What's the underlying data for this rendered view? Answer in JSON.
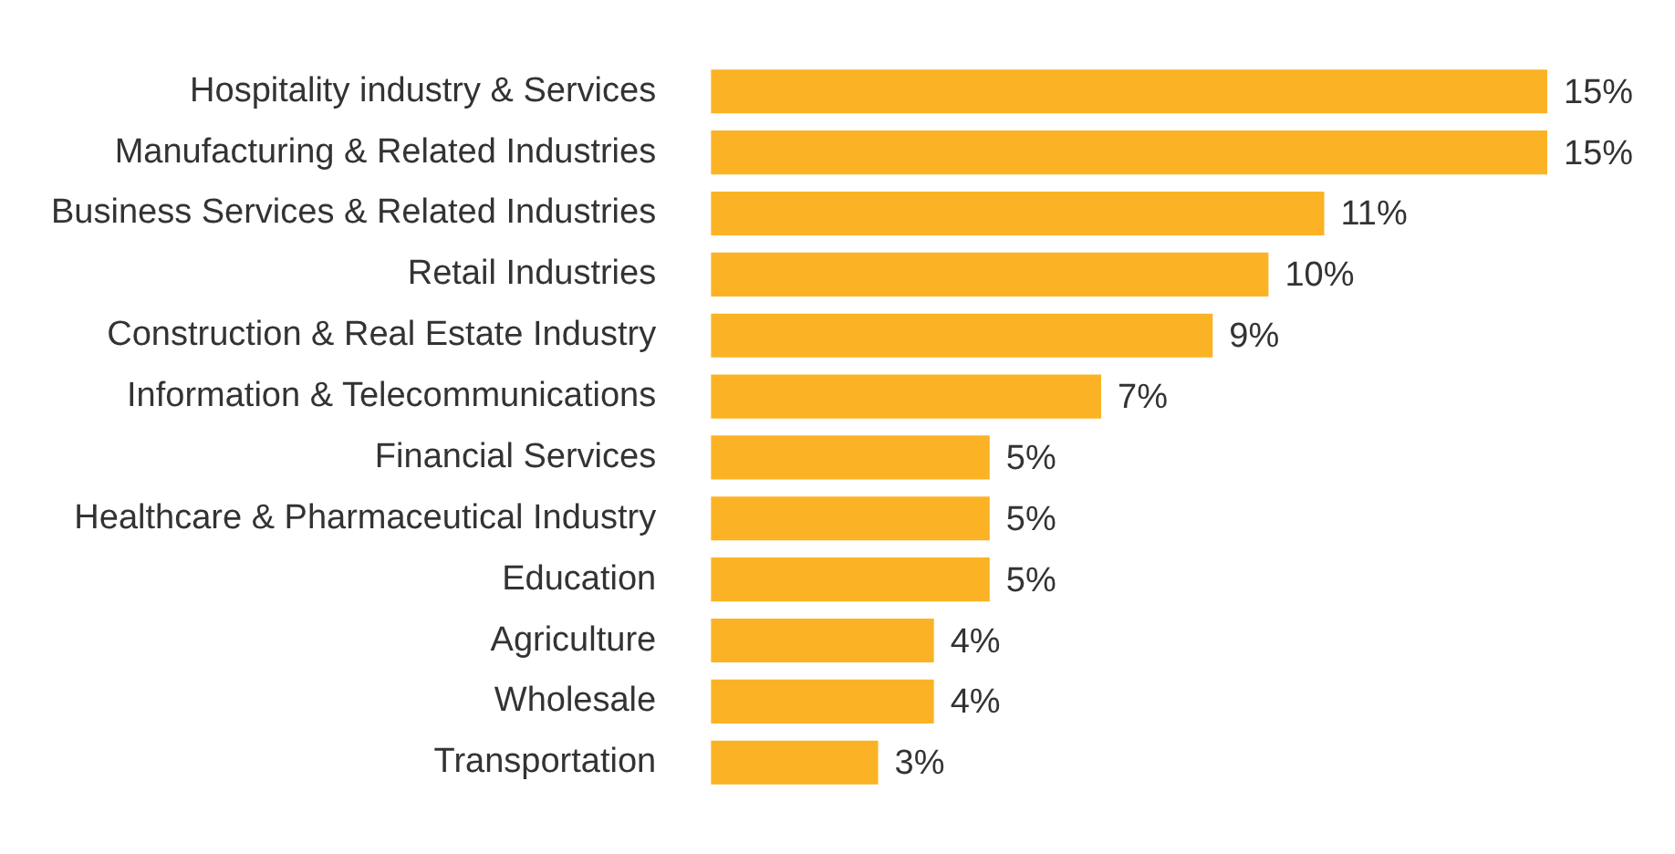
{
  "chart_data": {
    "type": "bar",
    "orientation": "horizontal",
    "color": "#fbb325",
    "categories": [
      "Hospitality industry & Services",
      "Manufacturing & Related Industries",
      "Business Services & Related Industries",
      "Retail Industries",
      "Construction & Real Estate Industry",
      "Information & Telecommunications",
      "Financial Services",
      "Healthcare & Pharmaceutical Industry",
      "Education",
      "Agriculture",
      "Wholesale",
      "Transportation"
    ],
    "values": [
      15,
      15,
      11,
      10,
      9,
      7,
      5,
      5,
      5,
      4,
      4,
      3
    ],
    "value_labels": [
      "15%",
      "15%",
      "11%",
      "10%",
      "9%",
      "7%",
      "5%",
      "5%",
      "5%",
      "4%",
      "4%",
      "3%"
    ],
    "legend": false
  }
}
